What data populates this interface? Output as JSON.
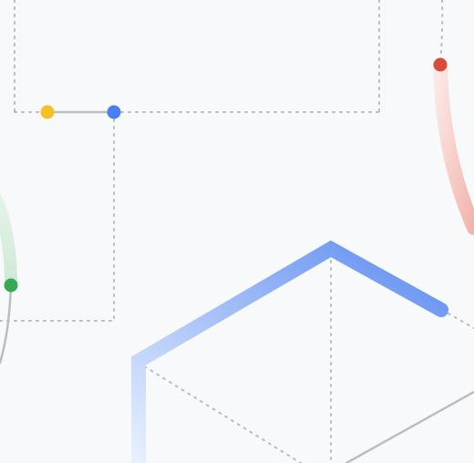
{
  "illustration": {
    "background": "#f8f9fa",
    "grid_color": "#b8bcc1",
    "line_gray": "#bdbdbd",
    "dots": {
      "yellow": "#f6bf26",
      "blue": "#4a7ef2",
      "green": "#34a853",
      "red": "#d94b3a"
    },
    "stroke_gradients": {
      "blue_start": "#e8f0fe",
      "blue_end": "#5e8df0",
      "red_start": "#fce8e6",
      "red_end": "#f2b3ab",
      "green_start": "#e6f4ea",
      "green_end": "#cfe9d6"
    }
  }
}
